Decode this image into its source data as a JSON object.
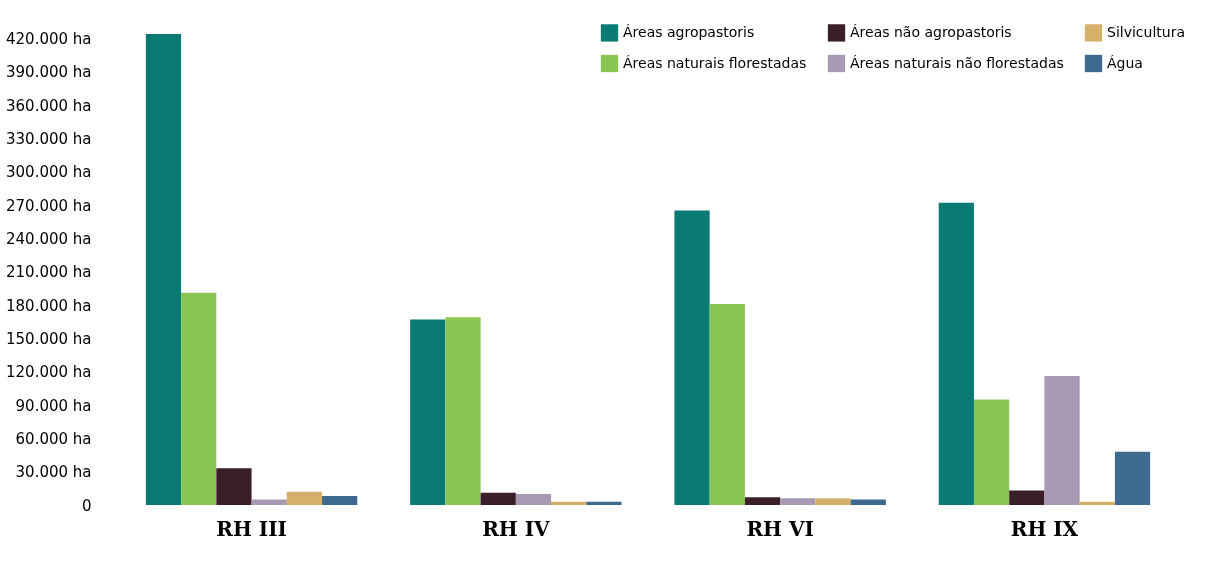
{
  "chart_data": {
    "type": "bar",
    "categories": [
      "RH III",
      "RH IV",
      "RH VI",
      "RH IX"
    ],
    "series": [
      {
        "name": "Áreas agropastoris",
        "color": "#0a7b73",
        "values": [
          424000,
          167000,
          265000,
          272000
        ]
      },
      {
        "name": "Áreas naturais florestadas",
        "color": "#8bc653",
        "values": [
          191000,
          169000,
          181000,
          95000
        ]
      },
      {
        "name": "Áreas não agropastoris",
        "color": "#3a1f2b",
        "values": [
          33000,
          11000,
          7000,
          13000
        ]
      },
      {
        "name": "Áreas naturais não florestadas",
        "color": "#a899b2",
        "values": [
          5000,
          10000,
          6000,
          116000
        ]
      },
      {
        "name": "Silvicultura",
        "color": "#d4b06a",
        "values": [
          12000,
          3000,
          6000,
          3000
        ]
      },
      {
        "name": "Água",
        "color": "#3d6a8e",
        "values": [
          8000,
          3000,
          5000,
          48000
        ]
      }
    ],
    "ylim": [
      0,
      450000
    ],
    "yticks": [
      0,
      {
        "value": 30000,
        "label": "30.000 ha"
      },
      {
        "value": 60000,
        "label": "60.000 ha"
      },
      {
        "value": 90000,
        "label": "90.000 ha"
      },
      {
        "value": 120000,
        "label": "120.000 ha"
      },
      {
        "value": 150000,
        "label": "150.000 ha"
      },
      {
        "value": 180000,
        "label": "180.000 ha"
      },
      {
        "value": 210000,
        "label": "210.000 ha"
      },
      {
        "value": 240000,
        "label": "240.000 ha"
      },
      {
        "value": 270000,
        "label": "270.000 ha"
      },
      {
        "value": 300000,
        "label": "300.000 ha"
      },
      {
        "value": 330000,
        "label": "330.000 ha"
      },
      {
        "value": 360000,
        "label": "360.000 ha"
      },
      {
        "value": 390000,
        "label": "390.000 ha"
      },
      {
        "value": 420000,
        "label": "420.000 ha"
      }
    ],
    "grid": false,
    "legend": "top right"
  }
}
